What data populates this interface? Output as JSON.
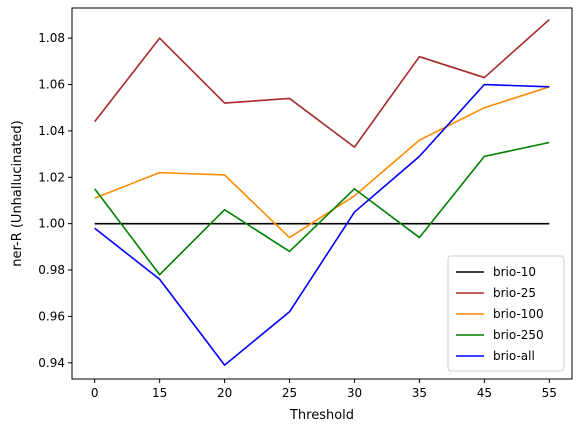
{
  "chart_data": {
    "type": "line",
    "title": "",
    "xlabel": "Threshold",
    "ylabel": "ner-R (Unhallucinated)",
    "categories": [
      "0",
      "15",
      "20",
      "25",
      "30",
      "35",
      "45",
      "55"
    ],
    "ylim": [
      0.933,
      1.093
    ],
    "yticks": [
      0.94,
      0.96,
      0.98,
      1.0,
      1.02,
      1.04,
      1.06,
      1.08
    ],
    "ytick_labels": [
      "0.94",
      "0.96",
      "0.98",
      "1.00",
      "1.02",
      "1.04",
      "1.06",
      "1.08"
    ],
    "grid": false,
    "legend_position": "lower-right",
    "series": [
      {
        "name": "brio-10",
        "color": "#000000",
        "values": [
          1.0,
          1.0,
          1.0,
          1.0,
          1.0,
          1.0,
          1.0,
          1.0
        ]
      },
      {
        "name": "brio-25",
        "color": "#a52a2a",
        "values": [
          1.044,
          1.08,
          1.052,
          1.054,
          1.033,
          1.072,
          1.063,
          1.088
        ]
      },
      {
        "name": "brio-100",
        "color": "#ff8c00",
        "values": [
          1.011,
          1.022,
          1.021,
          0.994,
          1.012,
          1.036,
          1.05,
          1.059
        ]
      },
      {
        "name": "brio-250",
        "color": "#008000",
        "values": [
          1.015,
          0.978,
          1.006,
          0.988,
          1.015,
          0.994,
          1.029,
          1.035
        ]
      },
      {
        "name": "brio-all",
        "color": "#0000ff",
        "values": [
          0.998,
          0.976,
          0.939,
          0.962,
          1.005,
          1.029,
          1.06,
          1.059
        ]
      }
    ]
  }
}
